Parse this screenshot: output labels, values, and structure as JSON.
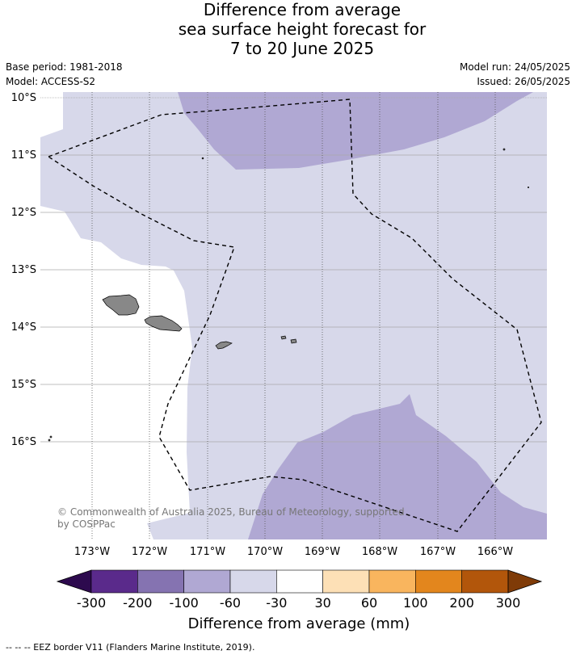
{
  "title": {
    "line1": "Difference from average",
    "line2": "sea surface height forecast for",
    "line3": "7 to 20 June 2025"
  },
  "info_left": {
    "base_period": "Base period: 1981-2018",
    "model": "Model: ACCESS-S2"
  },
  "info_right": {
    "model_run": "Model run: 24/05/2025",
    "issued": "Issued: 26/05/2025"
  },
  "map": {
    "lon_range": [
      -173.9,
      -165.2
    ],
    "lat_range": [
      -10,
      -17.8
    ],
    "lat_labels": [
      "10°S",
      "11°S",
      "12°S",
      "13°S",
      "14°S",
      "15°S",
      "16°S"
    ],
    "lon_labels": [
      "173°W",
      "172°W",
      "171°W",
      "170°W",
      "169°W",
      "168°W",
      "167°W",
      "166°W"
    ],
    "copyright_line1": "© Commonwealth of Australia 2025, Bureau of Meteorology, supported",
    "copyright_line2": "by COSPPac",
    "land_color": "#888888",
    "eez_line_style": "dashed black"
  },
  "colorbar": {
    "label": "Difference from average (mm)",
    "ticks": [
      "-300",
      "-200",
      "-100",
      "-60",
      "-30",
      "30",
      "60",
      "100",
      "200",
      "300"
    ],
    "colors": [
      "#2d0a4e",
      "#5a2a8b",
      "#8573b1",
      "#b0a8d3",
      "#d7d8ea",
      "#ffffff",
      "#fde0b6",
      "#f9b55e",
      "#e3861d",
      "#b2560b",
      "#7f3b08"
    ]
  },
  "footnote": "-- -- -- EEZ border V11 (Flanders Marine Institute, 2019)."
}
